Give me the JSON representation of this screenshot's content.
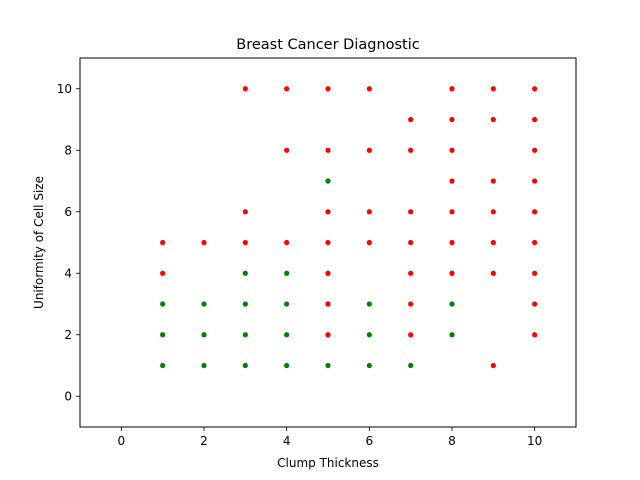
{
  "chart_data": {
    "type": "scatter",
    "title": "Breast Cancer Diagnostic",
    "xlabel": "Clump Thickness",
    "ylabel": "Uniformity of Cell Size",
    "xlim": [
      -1,
      11
    ],
    "ylim": [
      -1,
      11
    ],
    "xticks": [
      0,
      2,
      4,
      6,
      8,
      10
    ],
    "yticks": [
      0,
      2,
      4,
      6,
      8,
      10
    ],
    "grid": false,
    "series": [
      {
        "color": "#008000",
        "points": [
          [
            1,
            1
          ],
          [
            1,
            2
          ],
          [
            1,
            3
          ],
          [
            2,
            1
          ],
          [
            2,
            2
          ],
          [
            2,
            3
          ],
          [
            3,
            1
          ],
          [
            3,
            2
          ],
          [
            3,
            3
          ],
          [
            3,
            4
          ],
          [
            4,
            1
          ],
          [
            4,
            2
          ],
          [
            4,
            3
          ],
          [
            4,
            4
          ],
          [
            5,
            1
          ],
          [
            5,
            2
          ],
          [
            5,
            3
          ],
          [
            5,
            4
          ],
          [
            5,
            7
          ],
          [
            6,
            1
          ],
          [
            6,
            2
          ],
          [
            6,
            3
          ],
          [
            7,
            1
          ],
          [
            8,
            2
          ],
          [
            8,
            3
          ],
          [
            8,
            4
          ]
        ]
      },
      {
        "color": "#ff0000",
        "points": [
          [
            1,
            4
          ],
          [
            1,
            5
          ],
          [
            2,
            5
          ],
          [
            3,
            5
          ],
          [
            3,
            6
          ],
          [
            3,
            10
          ],
          [
            4,
            5
          ],
          [
            4,
            8
          ],
          [
            4,
            10
          ],
          [
            5,
            2
          ],
          [
            5,
            3
          ],
          [
            5,
            4
          ],
          [
            5,
            5
          ],
          [
            5,
            6
          ],
          [
            5,
            8
          ],
          [
            5,
            10
          ],
          [
            6,
            5
          ],
          [
            6,
            6
          ],
          [
            6,
            8
          ],
          [
            6,
            10
          ],
          [
            7,
            2
          ],
          [
            7,
            3
          ],
          [
            7,
            4
          ],
          [
            7,
            5
          ],
          [
            7,
            6
          ],
          [
            7,
            8
          ],
          [
            7,
            9
          ],
          [
            8,
            4
          ],
          [
            8,
            5
          ],
          [
            8,
            6
          ],
          [
            8,
            7
          ],
          [
            8,
            8
          ],
          [
            8,
            9
          ],
          [
            8,
            10
          ],
          [
            9,
            1
          ],
          [
            9,
            4
          ],
          [
            9,
            5
          ],
          [
            9,
            6
          ],
          [
            9,
            7
          ],
          [
            9,
            9
          ],
          [
            9,
            10
          ],
          [
            10,
            2
          ],
          [
            10,
            3
          ],
          [
            10,
            4
          ],
          [
            10,
            5
          ],
          [
            10,
            6
          ],
          [
            10,
            7
          ],
          [
            10,
            8
          ],
          [
            10,
            9
          ],
          [
            10,
            10
          ]
        ]
      }
    ]
  }
}
